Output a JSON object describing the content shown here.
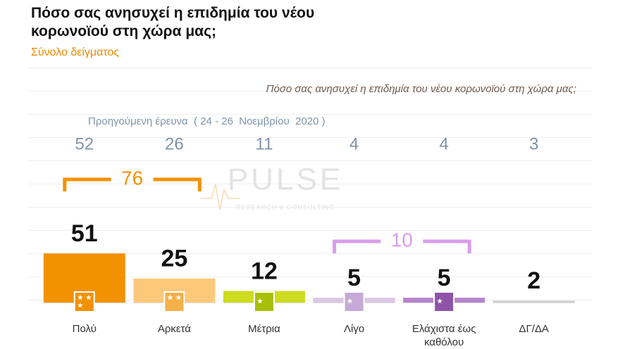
{
  "chart_data": {
    "type": "bar",
    "title": "Πόσο σας ανησυχεί η επιδημία του νέου κορωνοϊού στη χώρα μας;",
    "subtitle": "Σύνολο δείγματος",
    "question": "Πόσο σας ανησυχεί η επιδημία του νέου κορωνοϊού στη χώρα μας;",
    "categories": [
      "Πολύ",
      "Αρκετά",
      "Μέτρια",
      "Λίγο",
      "Ελάχιστα έως καθόλου",
      "ΔΓ/ΔΑ"
    ],
    "values": [
      51,
      25,
      12,
      5,
      5,
      2
    ],
    "colors": [
      "#f39200",
      "#fcc97a",
      "#cddc1e",
      "#dcc7e6",
      "#b684cc",
      "#cfcfcf"
    ],
    "previous": {
      "label": "Προηγούμενη έρευνα  ( 24 - 26  Νοεμβρίου  2020 )",
      "values": [
        52,
        26,
        11,
        4,
        4,
        3
      ]
    },
    "groups": [
      {
        "value": 76,
        "categories": [
          "Πολύ",
          "Αρκετά"
        ],
        "color": "#f39200"
      },
      {
        "value": 10,
        "categories": [
          "Λίγο",
          "Ελάχιστα έως καθόλου"
        ],
        "color": "#d99cec"
      }
    ],
    "watermark": {
      "title": "PULSE",
      "subtitle": "RESEARCH & CONSULTING"
    }
  }
}
